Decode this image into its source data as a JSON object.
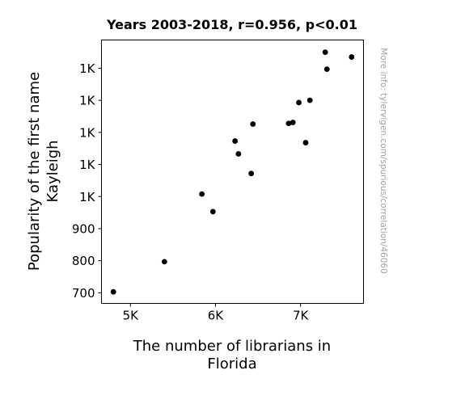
{
  "chart_data": {
    "type": "scatter",
    "title": "Years 2003-2018, r=0.956, p<0.01",
    "xlabel": [
      "The number of librarians in",
      "Florida"
    ],
    "ylabel": [
      "Popularity of the first name",
      "Kayleigh"
    ],
    "xlim": [
      4660,
      7740
    ],
    "ylim": [
      667,
      1488
    ],
    "x_ticks": [
      {
        "value": 5000,
        "label": "5K"
      },
      {
        "value": 6000,
        "label": "6K"
      },
      {
        "value": 7000,
        "label": "7K"
      }
    ],
    "y_ticks": [
      {
        "value": 700,
        "label": "700"
      },
      {
        "value": 800,
        "label": "800"
      },
      {
        "value": 900,
        "label": "900"
      },
      {
        "value": 1000,
        "label": "1K"
      },
      {
        "value": 1100,
        "label": "1K"
      },
      {
        "value": 1200,
        "label": "1K"
      },
      {
        "value": 1300,
        "label": "1K"
      },
      {
        "value": 1400,
        "label": "1K"
      }
    ],
    "grid": false,
    "marker_color": "#000000",
    "points": [
      {
        "x": 4800,
        "y": 703
      },
      {
        "x": 5400,
        "y": 797
      },
      {
        "x": 5840,
        "y": 1008
      },
      {
        "x": 5970,
        "y": 953
      },
      {
        "x": 6230,
        "y": 1173
      },
      {
        "x": 6270,
        "y": 1133
      },
      {
        "x": 6420,
        "y": 1072
      },
      {
        "x": 6440,
        "y": 1226
      },
      {
        "x": 6860,
        "y": 1228
      },
      {
        "x": 6910,
        "y": 1231
      },
      {
        "x": 6980,
        "y": 1293
      },
      {
        "x": 7060,
        "y": 1168
      },
      {
        "x": 7110,
        "y": 1300
      },
      {
        "x": 7290,
        "y": 1450
      },
      {
        "x": 7310,
        "y": 1397
      },
      {
        "x": 7600,
        "y": 1435
      }
    ]
  },
  "watermark": "More info: tylervigen.com/spurious/correlation/46060"
}
